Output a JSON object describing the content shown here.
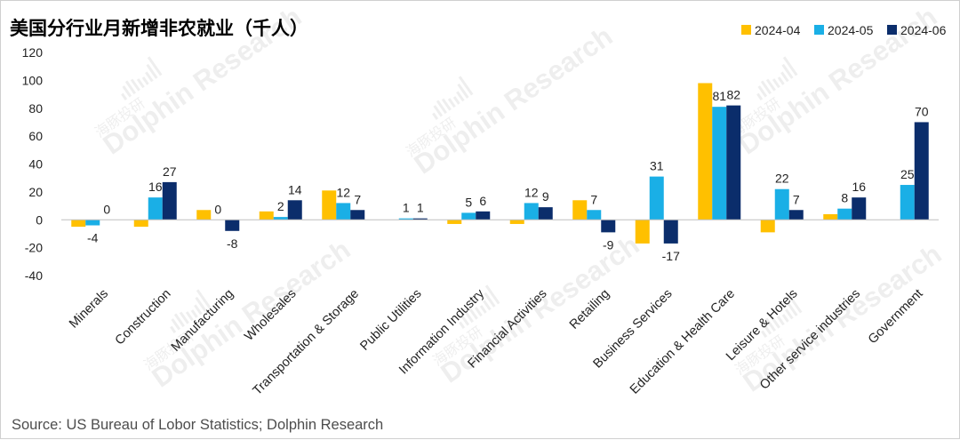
{
  "chart_data": {
    "type": "bar",
    "title": "美国分行业月新增非农就业（千人）",
    "source": "Source: US Bureau of Lobor Statistics; Dolphin Research",
    "watermark": "Dolphin Research",
    "watermark_cn": "海豚投研",
    "xlabel": "",
    "ylabel": "",
    "ylim": [
      -40,
      120
    ],
    "yticks": [
      -40,
      -20,
      0,
      20,
      40,
      60,
      80,
      100,
      120
    ],
    "grid": false,
    "legend_position": "top-right",
    "categories": [
      "Minerals",
      "Construction",
      "Manufacturing",
      "Wholesales",
      "Transportation & Storage",
      "Public Utilities",
      "Information Industry",
      "Financial Activities",
      "Retailing",
      "Business Services",
      "Education & Health Care",
      "Leisure & Hotels",
      "Other service industries",
      "Government"
    ],
    "series": [
      {
        "name": "2024-04",
        "color": "#FFC000",
        "values": [
          -5,
          -5,
          7,
          6,
          21,
          0,
          -3,
          -3,
          14,
          -17,
          98,
          -9,
          4,
          0
        ]
      },
      {
        "name": "2024-05",
        "color": "#1AAFE6",
        "values": [
          -4,
          16,
          0,
          2,
          12,
          1,
          5,
          12,
          7,
          31,
          81,
          22,
          8,
          25
        ]
      },
      {
        "name": "2024-06",
        "color": "#0B2D6B",
        "values": [
          0,
          27,
          -8,
          14,
          7,
          1,
          6,
          9,
          -9,
          -17,
          82,
          7,
          16,
          70
        ]
      }
    ],
    "data_labels": {
      "Minerals": [
        "-4",
        "0"
      ],
      "Construction": [
        "16",
        "27"
      ],
      "Manufacturing": [
        "0",
        "-8"
      ],
      "Wholesales": [
        "2",
        "14"
      ],
      "Transportation & Storage": [
        "12",
        "7"
      ],
      "Public Utilities": [
        "1",
        "1"
      ],
      "Information Industry": [
        "5",
        "6"
      ],
      "Financial Activities": [
        "12",
        "9"
      ],
      "Retailing": [
        "7",
        "-9"
      ],
      "Business Services": [
        "31",
        "-17"
      ],
      "Education & Health Care": [
        "81",
        "82"
      ],
      "Leisure & Hotels": [
        "22",
        "7"
      ],
      "Other service industries": [
        "8",
        "16"
      ],
      "Government": [
        "25",
        "70"
      ]
    }
  }
}
